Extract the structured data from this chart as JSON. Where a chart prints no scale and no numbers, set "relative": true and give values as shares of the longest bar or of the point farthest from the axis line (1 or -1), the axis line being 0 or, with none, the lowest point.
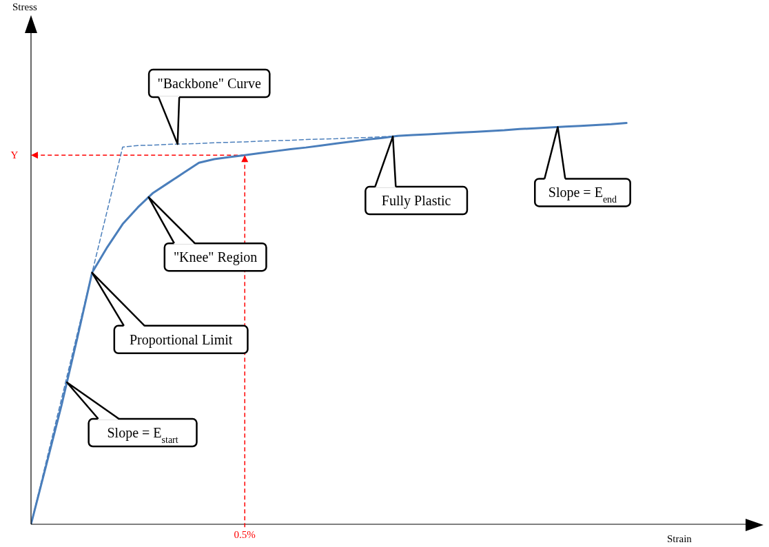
{
  "chart_data": {
    "type": "line",
    "relative": true,
    "xlabel": "Strain",
    "marker": "none",
    "categories": [
      null,
      null,
      null,
      null,
      null,
      null,
      null,
      null,
      null,
      null,
      null,
      null,
      null,
      null,
      null,
      null,
      null,
      null,
      null,
      null,
      null,
      null,
      null,
      null,
      null,
      null,
      null,
      null,
      null,
      null,
      null,
      null,
      null,
      null,
      null,
      null,
      null,
      null,
      null,
      null
    ],
    "series": [
      {
        "values": [
          0,
          0.148,
          0.297,
          0.459,
          0.627,
          0.691,
          0.748,
          0.79,
          0.826,
          0.851,
          0.876,
          0.901,
          0.91,
          0.915,
          0.92,
          0.925,
          0.93,
          0.935,
          0.939,
          0.944,
          0.949,
          0.954,
          0.959,
          0.963,
          0.968,
          0.97,
          0.972,
          0.974,
          0.976,
          0.978,
          0.98,
          0.982,
          0.985,
          0.987,
          0.989,
          0.991,
          0.993,
          0.995,
          0.997,
          1
        ],
        "color": "#4a7ebb",
        "line_style": "solid"
      },
      {
        "values": [
          0,
          0.157,
          0.313,
          0.47,
          0.627,
          0.783,
          0.94,
          0.944,
          0.945,
          0.947,
          0.948,
          0.949,
          0.951,
          0.952,
          0.953,
          0.955,
          0.956,
          0.957,
          0.959,
          0.96,
          0.961,
          0.963,
          0.964,
          0.966,
          0.967,
          null,
          null,
          null,
          null,
          null,
          null,
          null,
          null,
          null,
          null,
          null,
          null,
          null,
          null,
          null
        ],
        "color": "#4a7ebb",
        "line_style": "dashed"
      }
    ],
    "ref_lines": [
      {
        "axis": "y",
        "value": 0.92,
        "label": "Y",
        "color": "#ff0000",
        "line_style": "dashed"
      }
    ],
    "annotations": [
      "Slope = E$_{start}$",
      "Proportional Limit",
      "\"Knee\" Region",
      "\"Backbone\" Curve",
      "Fully Plastic",
      "Slope = E$_{end}$",
      "0.5%",
      "Stress"
    ]
  }
}
